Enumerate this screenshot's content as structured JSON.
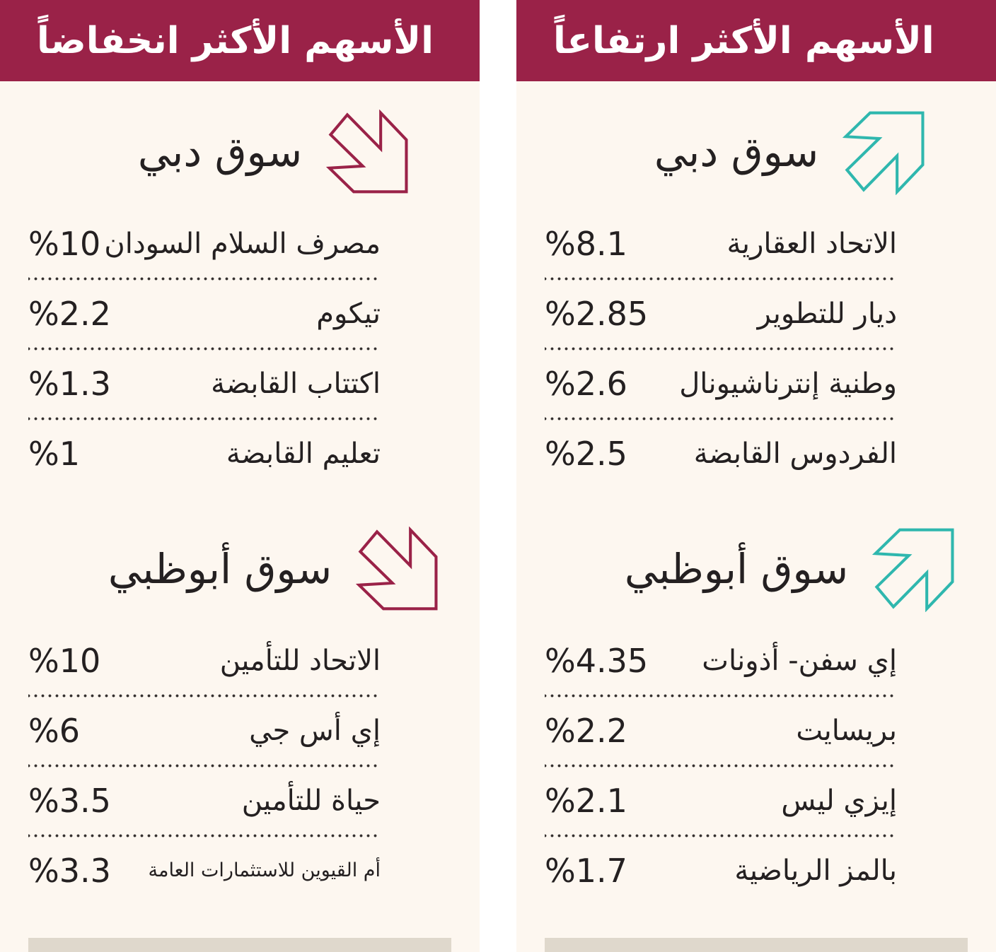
{
  "colors": {
    "maroon": "#9A2248",
    "teal": "#2FB7AE",
    "panel_background": "#FDF7F0",
    "footer_strip": "#DFD8CC",
    "header_text": "#FFFFFF",
    "body_text": "#242021",
    "dotted_separator": "#35302F",
    "gutter": "#FFFFFF"
  },
  "panels": [
    {
      "id": "top-gainers",
      "title": "الأسهم الأكثر ارتفاعاً",
      "trend": "up",
      "arrow_icon": "up-right-arrow-icon",
      "markets": [
        {
          "name": "سوق دبي",
          "stocks": [
            {
              "name": "الاتحاد العقارية",
              "change": "%8.1"
            },
            {
              "name": "ديار للتطوير",
              "change": "%2.85"
            },
            {
              "name": "وطنية إنترناشيونال",
              "change": "%2.6"
            },
            {
              "name": "الفردوس القابضة",
              "change": "%2.5"
            }
          ]
        },
        {
          "name": "سوق أبوظبي",
          "stocks": [
            {
              "name": "إي سفن- أذونات",
              "change": "%4.35"
            },
            {
              "name": "بريسايت",
              "change": "%2.2"
            },
            {
              "name": "إيزي ليس",
              "change": "%2.1"
            },
            {
              "name": "بالمز الرياضية",
              "change": "%1.7"
            }
          ]
        }
      ]
    },
    {
      "id": "top-losers",
      "title": "الأسهم الأكثر انخفاضاً",
      "trend": "down",
      "arrow_icon": "down-right-arrow-icon",
      "markets": [
        {
          "name": "سوق دبي",
          "stocks": [
            {
              "name": "مصرف السلام السودان",
              "change": "%10"
            },
            {
              "name": "تيكوم",
              "change": "%2.2"
            },
            {
              "name": "اكتتاب القابضة",
              "change": "%1.3"
            },
            {
              "name": "تعليم القابضة",
              "change": "%1"
            }
          ]
        },
        {
          "name": "سوق أبوظبي",
          "stocks": [
            {
              "name": "الاتحاد للتأمين",
              "change": "%10"
            },
            {
              "name": "إي أس جي",
              "change": "%6"
            },
            {
              "name": "حياة للتأمين",
              "change": "%3.5"
            },
            {
              "name": "أم القيوين للاستثمارات العامة",
              "change": "%3.3"
            }
          ]
        }
      ]
    }
  ],
  "chart_data": [
    {
      "type": "table",
      "title": "الأسهم الأكثر ارتفاعاً",
      "unit": "%",
      "sections": [
        {
          "market": "سوق دبي",
          "rows": [
            [
              "الاتحاد العقارية",
              8.1
            ],
            [
              "ديار للتطوير",
              2.85
            ],
            [
              "وطنية إنترناشيونال",
              2.6
            ],
            [
              "الفردوس القابضة",
              2.5
            ]
          ]
        },
        {
          "market": "سوق أبوظبي",
          "rows": [
            [
              "إي سفن- أذونات",
              4.35
            ],
            [
              "بريسايت",
              2.2
            ],
            [
              "إيزي ليس",
              2.1
            ],
            [
              "بالمز الرياضية",
              1.7
            ]
          ]
        }
      ]
    },
    {
      "type": "table",
      "title": "الأسهم الأكثر انخفاضاً",
      "unit": "%",
      "sections": [
        {
          "market": "سوق دبي",
          "rows": [
            [
              "مصرف السلام السودان",
              10
            ],
            [
              "تيكوم",
              2.2
            ],
            [
              "اكتتاب القابضة",
              1.3
            ],
            [
              "تعليم القابضة",
              1
            ]
          ]
        },
        {
          "market": "سوق أبوظبي",
          "rows": [
            [
              "الاتحاد للتأمين",
              10
            ],
            [
              "إي أس جي",
              6
            ],
            [
              "حياة للتأمين",
              3.5
            ],
            [
              "أم القيوين للاستثمارات العامة",
              3.3
            ]
          ]
        }
      ]
    }
  ]
}
